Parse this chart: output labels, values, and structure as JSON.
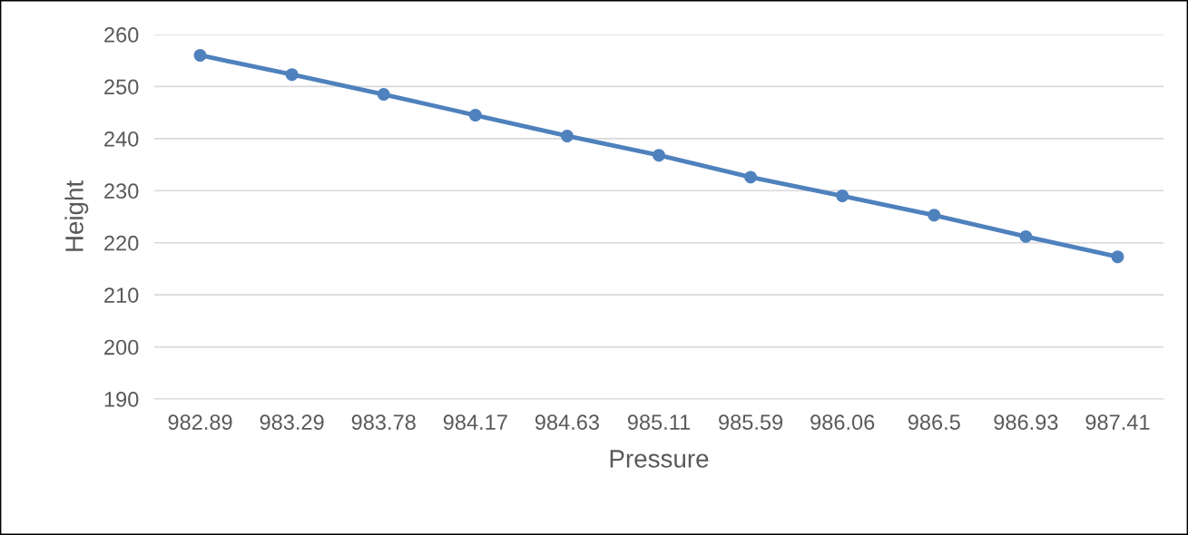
{
  "chart_data": {
    "type": "line",
    "xlabel": "Pressure",
    "ylabel": "Height",
    "categories": [
      "982.89",
      "983.29",
      "983.78",
      "984.17",
      "984.63",
      "985.11",
      "985.59",
      "986.06",
      "986.5",
      "986.93",
      "987.41"
    ],
    "series": [
      {
        "color": "#4f81bd",
        "values": [
          256.0,
          252.3,
          248.5,
          244.5,
          240.5,
          236.8,
          232.6,
          229.0,
          225.3,
          221.2,
          217.3
        ]
      }
    ],
    "ylim": [
      190,
      260
    ],
    "yticks": [
      190,
      200,
      210,
      220,
      230,
      240,
      250,
      260
    ],
    "grid": "y",
    "marker": "circle",
    "line_style": "solid",
    "legend": false
  }
}
